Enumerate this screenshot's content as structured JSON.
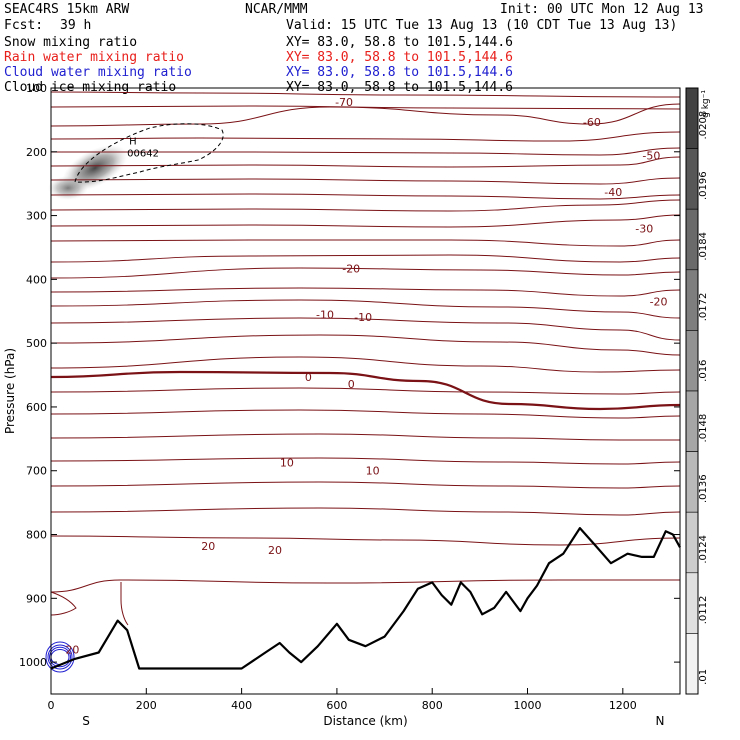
{
  "header": {
    "model": "SEAC4RS 15km ARW",
    "fcst_label": "Fcst:",
    "fcst_value": "39 h",
    "center": "NCAR/MMM",
    "init": "Init: 00 UTC Mon 12 Aug 13",
    "valid": "Valid: 15 UTC Tue 13 Aug 13 (10 CDT Tue 13 Aug 13)"
  },
  "fields": [
    {
      "name": "Snow mixing ratio",
      "xy": "XY=  83.0, 58.8 to 101.5,144.6",
      "color": "#000000"
    },
    {
      "name": "Rain water mixing ratio",
      "xy": "XY=  83.0, 58.8 to 101.5,144.6",
      "color": "#e8201c"
    },
    {
      "name": "Cloud water mixing ratio",
      "xy": "XY=  83.0, 58.8 to 101.5,144.6",
      "color": "#1f1fd0"
    },
    {
      "name": "Cloud ice mixing ratio",
      "xy": "XY=  83.0, 58.8 to 101.5,144.6",
      "color": "#000000"
    }
  ],
  "colors": {
    "temperature_contour": "#7a1216",
    "terrain": "#000000",
    "cloud_water": "#1f1fd0",
    "ice_contour": "#000000"
  },
  "chart_data": {
    "type": "cross-section",
    "xlabel": "Distance (km)",
    "ylabel": "Pressure (hPa)",
    "xlim": [
      0,
      1320
    ],
    "ylim": [
      1050,
      100
    ],
    "x_ticks": [
      0,
      200,
      400,
      600,
      800,
      1000,
      1200
    ],
    "y_ticks": [
      200,
      300,
      400,
      500,
      600,
      700,
      800,
      900,
      1000
    ],
    "x_end_labels": {
      "left": "S",
      "right": "N"
    },
    "colorbar": {
      "unit": "g kg⁻¹",
      "ticks": [
        ".0208",
        ".0196",
        ".0184",
        ".0172",
        ".016",
        ".0148",
        ".0136",
        ".0124",
        ".0112",
        ".01"
      ]
    },
    "temperature_labels": [
      {
        "text": "-70",
        "x": 615,
        "p": 122
      },
      {
        "text": "-60",
        "x": 1135,
        "p": 153
      },
      {
        "text": "-50",
        "x": 1260,
        "p": 206
      },
      {
        "text": "-40",
        "x": 1180,
        "p": 263
      },
      {
        "text": "-30",
        "x": 1245,
        "p": 320
      },
      {
        "text": "-20",
        "x": 630,
        "p": 383
      },
      {
        "text": "-20",
        "x": 1275,
        "p": 435
      },
      {
        "text": "-10",
        "x": 575,
        "p": 455
      },
      {
        "text": "-10",
        "x": 655,
        "p": 459
      },
      {
        "text": "0",
        "x": 540,
        "p": 553
      },
      {
        "text": "0",
        "x": 630,
        "p": 564
      },
      {
        "text": "10",
        "x": 495,
        "p": 687
      },
      {
        "text": "10",
        "x": 675,
        "p": 700
      },
      {
        "text": "20",
        "x": 330,
        "p": 818
      },
      {
        "text": "20",
        "x": 470,
        "p": 824
      },
      {
        "text": "20",
        "x": 45,
        "p": 980
      }
    ],
    "ice_max": {
      "label": "H",
      "value": "00642",
      "x": 185,
      "p": 195
    },
    "terrain_profile": [
      [
        0,
        1010
      ],
      [
        50,
        995
      ],
      [
        100,
        985
      ],
      [
        140,
        935
      ],
      [
        160,
        950
      ],
      [
        185,
        1010
      ],
      [
        260,
        1010
      ],
      [
        320,
        1010
      ],
      [
        400,
        1010
      ],
      [
        450,
        985
      ],
      [
        480,
        970
      ],
      [
        500,
        985
      ],
      [
        525,
        1000
      ],
      [
        560,
        975
      ],
      [
        600,
        940
      ],
      [
        625,
        965
      ],
      [
        660,
        975
      ],
      [
        700,
        960
      ],
      [
        740,
        920
      ],
      [
        770,
        885
      ],
      [
        800,
        875
      ],
      [
        820,
        895
      ],
      [
        840,
        910
      ],
      [
        860,
        875
      ],
      [
        880,
        890
      ],
      [
        905,
        925
      ],
      [
        930,
        915
      ],
      [
        955,
        890
      ],
      [
        985,
        920
      ],
      [
        1000,
        900
      ],
      [
        1020,
        880
      ],
      [
        1045,
        845
      ],
      [
        1075,
        830
      ],
      [
        1110,
        790
      ],
      [
        1140,
        815
      ],
      [
        1175,
        845
      ],
      [
        1210,
        830
      ],
      [
        1240,
        835
      ],
      [
        1265,
        835
      ],
      [
        1290,
        795
      ],
      [
        1305,
        800
      ],
      [
        1320,
        820
      ]
    ]
  }
}
